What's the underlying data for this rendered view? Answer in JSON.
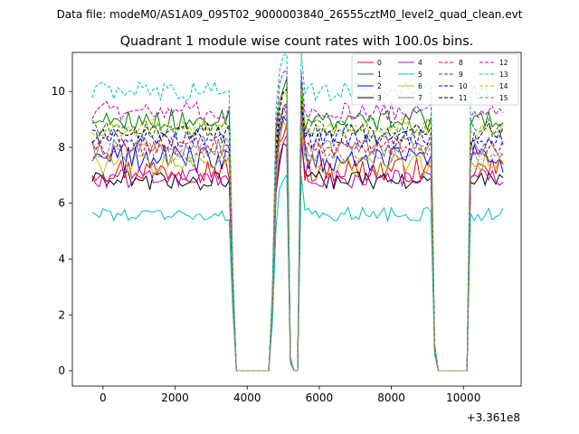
{
  "suptitle": "Data file: modeM0/AS1A09_095T02_9000003840_26555cztM0_level2_quad_clean.evt",
  "chart_data": {
    "type": "line",
    "title": "Quadrant 1 module wise count rates with 100.0s bins.",
    "xlabel": "",
    "ylabel": "",
    "x_offset_label": "+3.361e8",
    "xlim": [
      -850,
      11600
    ],
    "ylim": [
      -0.55,
      11.4
    ],
    "xticks": [
      0,
      2000,
      4000,
      6000,
      8000,
      10000
    ],
    "xtick_labels": [
      "0",
      "2000",
      "4000",
      "6000",
      "8000",
      "10000"
    ],
    "yticks": [
      0,
      2,
      4,
      6,
      8,
      10
    ],
    "ytick_labels": [
      "0",
      "2",
      "4",
      "6",
      "8",
      "10"
    ],
    "legend_position": "top-right",
    "legend_columns": 4,
    "time_grid": {
      "start": -300,
      "step": 100,
      "count": 115
    },
    "segments": [
      {
        "from": 0,
        "to": 38,
        "kind": "active"
      },
      {
        "from": 39,
        "to": 39,
        "kind": "transition",
        "fraction": 0.4
      },
      {
        "from": 40,
        "to": 49,
        "kind": "off"
      },
      {
        "from": 50,
        "to": 50,
        "kind": "transition",
        "fraction": 0.3
      },
      {
        "from": 51,
        "to": 54,
        "kind": "active",
        "ramp_up": true
      },
      {
        "from": 55,
        "to": 55,
        "kind": "transition",
        "fraction": 0.05
      },
      {
        "from": 56,
        "to": 57,
        "kind": "off"
      },
      {
        "from": 58,
        "to": 94,
        "kind": "active",
        "first_high": true
      },
      {
        "from": 95,
        "to": 95,
        "kind": "transition",
        "fraction": 0.1
      },
      {
        "from": 96,
        "to": 104,
        "kind": "off"
      },
      {
        "from": 105,
        "to": 114,
        "kind": "active"
      }
    ],
    "series": [
      {
        "name": "0",
        "color": "#ff0000",
        "dash": "solid",
        "mean": 7.2,
        "noise": 0.45
      },
      {
        "name": "1",
        "color": "#008000",
        "dash": "solid",
        "mean": 9.0,
        "noise": 0.4
      },
      {
        "name": "2",
        "color": "#0000ff",
        "dash": "solid",
        "mean": 7.6,
        "noise": 0.5
      },
      {
        "name": "3",
        "color": "#000000",
        "dash": "solid",
        "mean": 6.8,
        "noise": 0.35
      },
      {
        "name": "4",
        "color": "#bf00bf",
        "dash": "solid",
        "mean": 6.9,
        "noise": 0.35
      },
      {
        "name": "5",
        "color": "#00bfbf",
        "dash": "solid",
        "mean": 5.6,
        "noise": 0.25
      },
      {
        "name": "6",
        "color": "#bfbf00",
        "dash": "solid",
        "mean": 7.4,
        "noise": 0.4
      },
      {
        "name": "7",
        "color": "#808080",
        "dash": "solid",
        "mean": 8.0,
        "noise": 0.4
      },
      {
        "name": "8",
        "color": "#ff0000",
        "dash": "dashed",
        "mean": 8.0,
        "noise": 0.35
      },
      {
        "name": "9",
        "color": "#008000",
        "dash": "dashed",
        "mean": 8.7,
        "noise": 0.35
      },
      {
        "name": "10",
        "color": "#0000ff",
        "dash": "dashed",
        "mean": 8.3,
        "noise": 0.35
      },
      {
        "name": "11",
        "color": "#000000",
        "dash": "dashed",
        "mean": 8.5,
        "noise": 0.35
      },
      {
        "name": "12",
        "color": "#bf00bf",
        "dash": "dashed",
        "mean": 9.3,
        "noise": 0.35
      },
      {
        "name": "13",
        "color": "#00bfbf",
        "dash": "dashed",
        "mean": 10.0,
        "noise": 0.35
      },
      {
        "name": "14",
        "color": "#bfbf00",
        "dash": "dashed",
        "mean": 8.7,
        "noise": 0.35
      },
      {
        "name": "15",
        "color": "#808080",
        "dash": "dashed",
        "mean": 7.8,
        "noise": 0.35
      }
    ]
  }
}
